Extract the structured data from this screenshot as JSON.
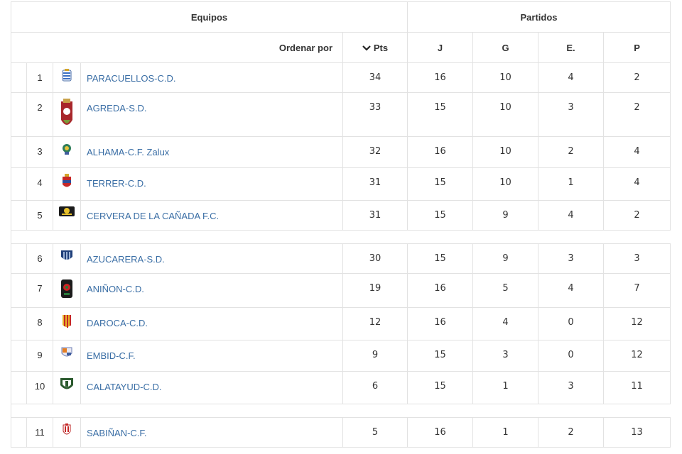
{
  "header": {
    "equipos_label": "Equipos",
    "partidos_label": "Partidos",
    "sort_label": "Ordenar por",
    "columns": {
      "pts": "Pts",
      "j": "J",
      "g": "G",
      "e": "E.",
      "p": "P"
    }
  },
  "rows": [
    {
      "pos": "1",
      "team": "PARACUELLOS-C.D.",
      "pts": "34",
      "j": "16",
      "g": "10",
      "e": "4",
      "p": "2",
      "crest": "crest-blue-white"
    },
    {
      "pos": "2",
      "team": "AGREDA-S.D.",
      "pts": "33",
      "j": "15",
      "g": "10",
      "e": "3",
      "p": "2",
      "crest": "crest-red-shield"
    },
    {
      "pos": "3",
      "team": "ALHAMA-C.F. Zalux",
      "pts": "32",
      "j": "16",
      "g": "10",
      "e": "2",
      "p": "4",
      "crest": "crest-green-yellow"
    },
    {
      "pos": "4",
      "team": "TERRER-C.D.",
      "pts": "31",
      "j": "15",
      "g": "10",
      "e": "1",
      "p": "4",
      "crest": "crest-red-blue"
    },
    {
      "pos": "5",
      "team": "CERVERA DE LA CAÑADA F.C.",
      "pts": "31",
      "j": "15",
      "g": "9",
      "e": "4",
      "p": "2",
      "crest": "crest-black-yellow"
    },
    {
      "pos": "6",
      "team": "AZUCARERA-S.D.",
      "pts": "30",
      "j": "15",
      "g": "9",
      "e": "3",
      "p": "3",
      "crest": "crest-blue-stripes"
    },
    {
      "pos": "7",
      "team": "ANIÑON-C.D.",
      "pts": "19",
      "j": "16",
      "g": "5",
      "e": "4",
      "p": "7",
      "crest": "crest-black-red"
    },
    {
      "pos": "8",
      "team": "DAROCA-C.D.",
      "pts": "12",
      "j": "16",
      "g": "4",
      "e": "0",
      "p": "12",
      "crest": "crest-red-yellow-stripes"
    },
    {
      "pos": "9",
      "team": "EMBID-C.F.",
      "pts": "9",
      "j": "15",
      "g": "3",
      "e": "0",
      "p": "12",
      "crest": "crest-orange-blue"
    },
    {
      "pos": "10",
      "team": "CALATAYUD-C.D.",
      "pts": "6",
      "j": "15",
      "g": "1",
      "e": "3",
      "p": "11",
      "crest": "crest-green-white"
    },
    {
      "pos": "11",
      "team": "SABIÑAN-C.F.",
      "pts": "5",
      "j": "16",
      "g": "1",
      "e": "2",
      "p": "13",
      "crest": "crest-red-white"
    }
  ],
  "colors": {
    "link": "#3a6ea5",
    "border": "#e2e2e2"
  }
}
